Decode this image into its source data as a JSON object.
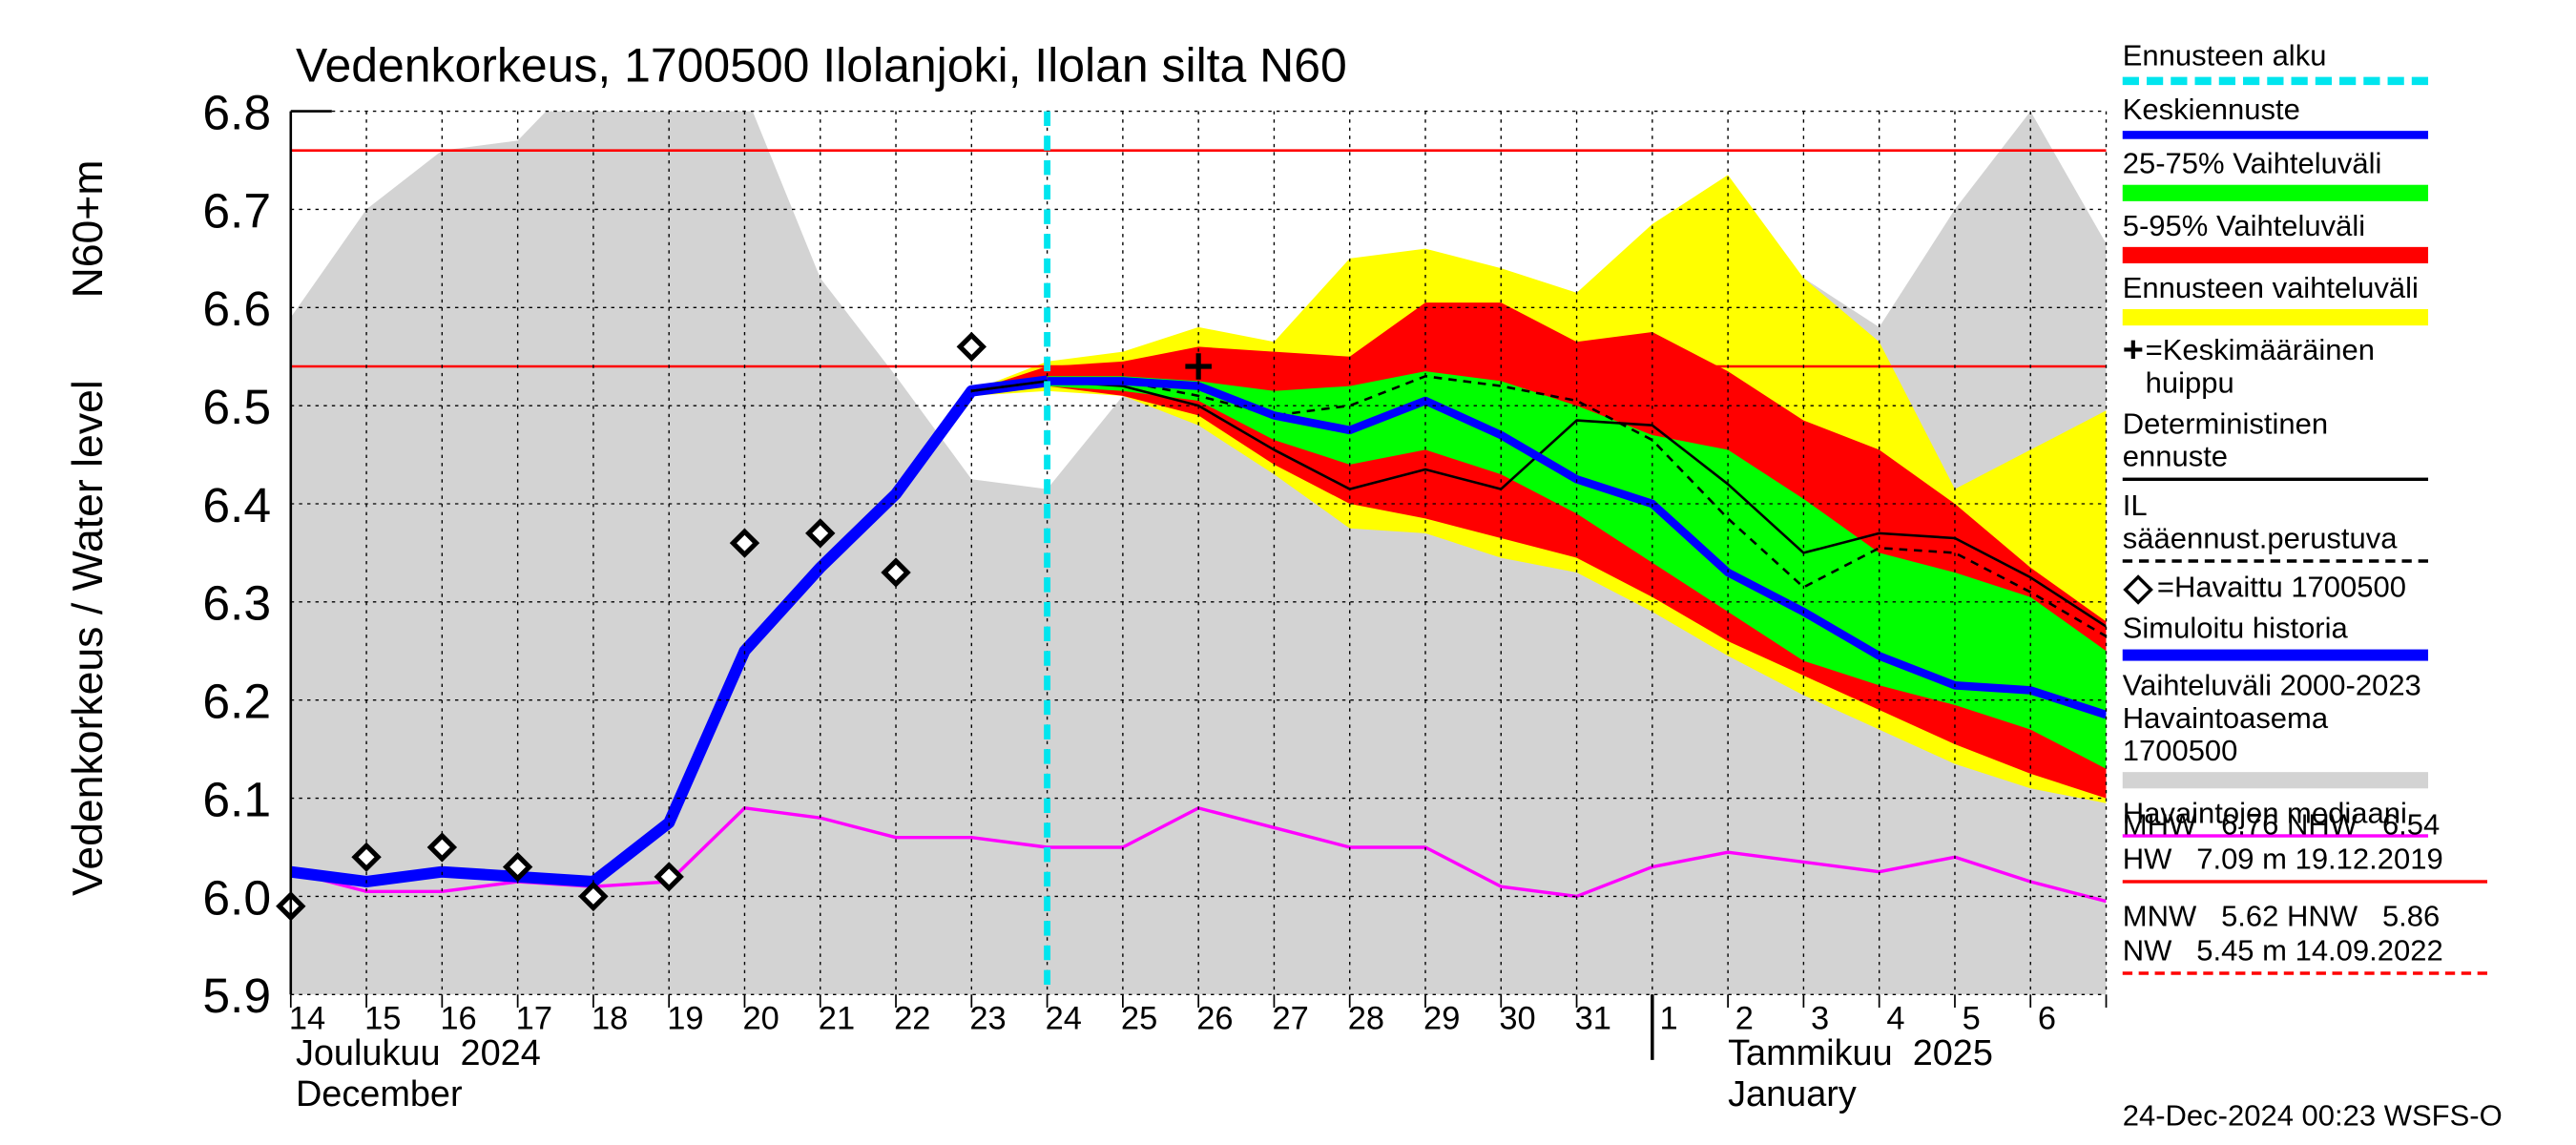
{
  "chart_data": {
    "type": "line",
    "title": "Vedenkorkeus, 1700500 Ilolanjoki, Ilolan silta N60",
    "y_label": "Vedenkorkeus / Water level",
    "y_unit_label": "N60+m",
    "categories": [
      "14",
      "15",
      "16",
      "17",
      "18",
      "19",
      "20",
      "21",
      "22",
      "23",
      "24",
      "25",
      "26",
      "27",
      "28",
      "29",
      "30",
      "31",
      "1",
      "2",
      "3",
      "4",
      "5",
      "6",
      null
    ],
    "months": [
      {
        "label": "Joulukuu  2024",
        "label_en": "December"
      },
      {
        "label": "Tammikuu  2025",
        "label_en": "January"
      }
    ],
    "ylim": [
      5.9,
      6.8
    ],
    "yticks": [
      5.9,
      {
        "value": 6,
        "label": "6.0"
      },
      6.1,
      6.2,
      6.3,
      6.4,
      6.5,
      6.6,
      6.7,
      6.8
    ],
    "grid": true,
    "forecast_start": {
      "name": "Ennusteen alku",
      "color": "#00e5ee"
    },
    "series": [
      {
        "name": "Keskiennuste",
        "kind": "line",
        "color": "#0000ff",
        "width": 5,
        "values": [
          null,
          null,
          null,
          null,
          null,
          null,
          null,
          null,
          null,
          null,
          6.525,
          6.525,
          6.52,
          6.49,
          6.475,
          6.505,
          6.47,
          6.425,
          6.4,
          6.33,
          6.29,
          6.245,
          6.215,
          6.21,
          6.185
        ]
      },
      {
        "name": "25-75% Vaihteluväli",
        "kind": "range",
        "color": "#00ff00",
        "high": [
          null,
          null,
          null,
          null,
          null,
          null,
          null,
          null,
          null,
          null,
          6.53,
          6.53,
          6.525,
          6.515,
          6.52,
          6.535,
          6.525,
          6.5,
          6.47,
          6.455,
          6.405,
          6.35,
          6.33,
          6.305,
          6.25
        ],
        "low": [
          null,
          null,
          null,
          null,
          null,
          null,
          null,
          null,
          null,
          null,
          6.52,
          6.515,
          6.505,
          6.465,
          6.44,
          6.455,
          6.43,
          6.39,
          6.34,
          6.29,
          6.24,
          6.215,
          6.195,
          6.17,
          6.13
        ]
      },
      {
        "name": "5-95% Vaihteluväli",
        "kind": "range",
        "color": "#ff0000",
        "high": [
          null,
          null,
          null,
          null,
          null,
          null,
          null,
          null,
          null,
          6.515,
          6.54,
          6.545,
          6.56,
          6.555,
          6.55,
          6.605,
          6.605,
          6.565,
          6.575,
          6.535,
          6.485,
          6.455,
          6.4,
          6.335,
          6.28
        ],
        "low": [
          null,
          null,
          null,
          null,
          null,
          null,
          null,
          null,
          null,
          6.51,
          6.52,
          6.51,
          6.49,
          6.44,
          6.4,
          6.385,
          6.365,
          6.345,
          6.305,
          6.26,
          6.225,
          6.19,
          6.155,
          6.125,
          6.1
        ]
      },
      {
        "name": "Ennusteen vaihteluväli",
        "kind": "range",
        "color": "#ffff00",
        "high": [
          null,
          null,
          null,
          null,
          null,
          null,
          null,
          null,
          null,
          6.515,
          6.545,
          6.555,
          6.58,
          6.565,
          6.65,
          6.66,
          6.64,
          6.615,
          6.685,
          6.735,
          6.63,
          6.565,
          6.415,
          6.455,
          6.495
        ],
        "low": [
          null,
          null,
          null,
          null,
          null,
          null,
          null,
          null,
          null,
          6.51,
          6.515,
          6.51,
          6.48,
          6.43,
          6.375,
          6.37,
          6.345,
          6.33,
          6.29,
          6.245,
          6.205,
          6.17,
          6.135,
          6.11,
          6.095
        ]
      },
      {
        "name": "=Keskimääräinen huippu",
        "kind": "marker",
        "marker": "plus",
        "color": "#000000",
        "values": [
          null,
          null,
          null,
          null,
          null,
          null,
          null,
          null,
          null,
          null,
          null,
          null,
          6.54,
          null,
          null,
          null,
          null,
          null,
          null,
          null,
          null,
          null,
          null,
          null,
          null
        ]
      },
      {
        "name": "Deterministinen ennuste",
        "kind": "line",
        "color": "#000000",
        "width": 1.5,
        "values": [
          null,
          null,
          null,
          null,
          null,
          null,
          null,
          null,
          null,
          6.515,
          6.525,
          6.52,
          6.5,
          6.455,
          6.415,
          6.435,
          6.415,
          6.485,
          6.48,
          6.42,
          6.35,
          6.37,
          6.365,
          6.325,
          6.275
        ]
      },
      {
        "name": "IL sääennust.perustuva",
        "kind": "line",
        "color": "#000000",
        "width": 1.5,
        "dash": true,
        "values": [
          null,
          null,
          null,
          null,
          null,
          null,
          null,
          null,
          null,
          6.515,
          6.525,
          6.525,
          6.51,
          6.49,
          6.5,
          6.53,
          6.52,
          6.505,
          6.465,
          6.385,
          6.315,
          6.355,
          6.35,
          6.31,
          6.265
        ]
      },
      {
        "name": "=Havaittu 1700500",
        "kind": "marker",
        "marker": "diamond",
        "color": "#000000",
        "values": [
          5.99,
          6.04,
          6.05,
          6.03,
          6.0,
          6.02,
          6.36,
          6.37,
          6.33,
          6.56,
          null,
          null,
          null,
          null,
          null,
          null,
          null,
          null,
          null,
          null,
          null,
          null,
          null,
          null,
          null
        ]
      },
      {
        "name": "Simuloitu historia",
        "kind": "line",
        "color": "#0000ff",
        "width": 7,
        "values": [
          6.025,
          6.015,
          6.025,
          6.02,
          6.015,
          6.075,
          6.25,
          6.335,
          6.41,
          6.515,
          6.525,
          null,
          null,
          null,
          null,
          null,
          null,
          null,
          null,
          null,
          null,
          null,
          null,
          null,
          null
        ]
      },
      {
        "name": "Vaihteluväli 2000-2023  Havaintoasema 1700500",
        "kind": "range",
        "color": "#d3d3d3",
        "high": [
          6.59,
          6.7,
          6.76,
          6.77,
          6.85,
          6.85,
          6.82,
          6.63,
          6.53,
          6.425,
          6.415,
          6.51,
          6.535,
          6.51,
          6.545,
          6.615,
          6.59,
          6.5,
          6.55,
          6.63,
          6.63,
          6.58,
          6.7,
          6.8,
          6.665
        ],
        "low": [
          5.8,
          5.8,
          5.8,
          5.8,
          5.8,
          5.8,
          5.8,
          5.8,
          5.8,
          5.8,
          5.8,
          5.8,
          5.8,
          5.8,
          5.8,
          5.8,
          5.8,
          5.8,
          5.8,
          5.8,
          5.8,
          5.8,
          5.8,
          5.8,
          5.8
        ]
      },
      {
        "name": "Havaintojen mediaani",
        "kind": "line",
        "color": "#ff00ff",
        "width": 2,
        "values": [
          6.025,
          6.005,
          6.005,
          6.015,
          6.01,
          6.015,
          6.09,
          6.08,
          6.06,
          6.06,
          6.05,
          6.05,
          6.09,
          6.07,
          6.05,
          6.05,
          6.01,
          6.0,
          6.03,
          6.045,
          6.035,
          6.025,
          6.04,
          6.015,
          5.995
        ]
      }
    ],
    "reference_lines": [
      {
        "label": "MHW",
        "value": 6.76,
        "color": "#ff0000"
      },
      {
        "label": "NHW",
        "value": 6.54,
        "color": "#ff0000"
      }
    ],
    "hw_note": "HW   7.09 m 19.12.2019",
    "low_stats": [
      {
        "label": "MNW",
        "value": 5.62
      },
      {
        "label": "HNW",
        "value": 5.86
      }
    ],
    "nw_note": "NW   5.45 m 14.09.2022",
    "timestamp": "24-Dec-2024 00:23 WSFS-O"
  }
}
